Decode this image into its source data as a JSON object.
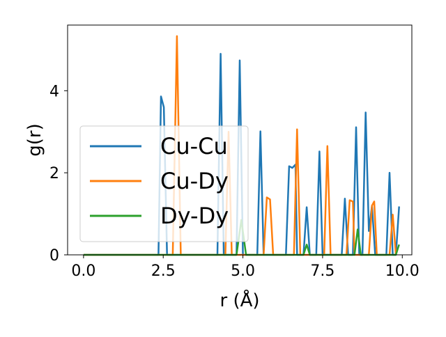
{
  "chart_data": {
    "type": "line",
    "xlabel": "r (Å)",
    "ylabel": "g(r)",
    "xlim": [
      -0.5,
      10.3
    ],
    "ylim": [
      0,
      5.6
    ],
    "xticks": [
      0.0,
      2.5,
      5.0,
      7.5,
      10.0
    ],
    "xtick_labels": [
      "0.0",
      "2.5",
      "5.0",
      "7.5",
      "10.0"
    ],
    "yticks": [
      0,
      2,
      4
    ],
    "ytick_labels": [
      "0",
      "2",
      "4"
    ],
    "grid": false,
    "legend_position": "center-left",
    "series": [
      {
        "name": "Cu-Cu",
        "color": "#1f77b4",
        "points": [
          [
            0.0,
            0
          ],
          [
            2.25,
            0
          ],
          [
            2.35,
            0
          ],
          [
            2.43,
            3.86
          ],
          [
            2.52,
            3.6
          ],
          [
            2.62,
            0
          ],
          [
            4.2,
            0
          ],
          [
            4.3,
            4.9
          ],
          [
            4.4,
            0
          ],
          [
            4.8,
            0
          ],
          [
            4.9,
            4.74
          ],
          [
            5.0,
            0
          ],
          [
            5.45,
            0
          ],
          [
            5.55,
            3.01
          ],
          [
            5.65,
            0
          ],
          [
            6.35,
            0
          ],
          [
            6.45,
            2.16
          ],
          [
            6.55,
            2.12
          ],
          [
            6.65,
            2.2
          ],
          [
            6.7,
            0
          ],
          [
            6.9,
            0
          ],
          [
            7.0,
            1.16
          ],
          [
            7.1,
            0
          ],
          [
            7.3,
            0
          ],
          [
            7.4,
            2.52
          ],
          [
            7.5,
            0
          ],
          [
            8.1,
            0
          ],
          [
            8.2,
            1.37
          ],
          [
            8.3,
            0
          ],
          [
            8.45,
            0
          ],
          [
            8.55,
            3.11
          ],
          [
            8.65,
            0
          ],
          [
            8.75,
            0
          ],
          [
            8.85,
            3.47
          ],
          [
            8.95,
            0.58
          ],
          [
            9.05,
            1.2
          ],
          [
            9.15,
            0
          ],
          [
            9.5,
            0
          ],
          [
            9.6,
            2.0
          ],
          [
            9.7,
            0
          ],
          [
            9.8,
            0
          ],
          [
            9.9,
            1.18
          ]
        ]
      },
      {
        "name": "Cu-Dy",
        "color": "#ff7f0e",
        "points": [
          [
            0.0,
            0
          ],
          [
            2.8,
            0
          ],
          [
            2.93,
            5.33
          ],
          [
            3.05,
            0
          ],
          [
            4.45,
            0
          ],
          [
            4.55,
            3.0
          ],
          [
            4.65,
            0
          ],
          [
            5.65,
            0
          ],
          [
            5.75,
            1.4
          ],
          [
            5.85,
            1.35
          ],
          [
            5.95,
            0
          ],
          [
            6.6,
            0
          ],
          [
            6.7,
            3.06
          ],
          [
            6.8,
            0
          ],
          [
            7.55,
            0
          ],
          [
            7.65,
            2.65
          ],
          [
            7.75,
            0
          ],
          [
            8.25,
            0
          ],
          [
            8.35,
            1.33
          ],
          [
            8.45,
            1.3
          ],
          [
            8.5,
            0
          ],
          [
            8.95,
            0
          ],
          [
            9.05,
            1.2
          ],
          [
            9.12,
            1.3
          ],
          [
            9.2,
            0
          ],
          [
            9.6,
            0
          ],
          [
            9.7,
            0.98
          ],
          [
            9.8,
            0
          ]
        ]
      },
      {
        "name": "Dy-Dy",
        "color": "#2ca02c",
        "points": [
          [
            0.0,
            0
          ],
          [
            4.8,
            0
          ],
          [
            4.95,
            0.85
          ],
          [
            5.1,
            0
          ],
          [
            6.9,
            0
          ],
          [
            7.0,
            0.25
          ],
          [
            7.1,
            0
          ],
          [
            8.5,
            0
          ],
          [
            8.6,
            0.62
          ],
          [
            8.7,
            0
          ],
          [
            9.8,
            0
          ],
          [
            9.9,
            0.25
          ]
        ]
      }
    ]
  }
}
